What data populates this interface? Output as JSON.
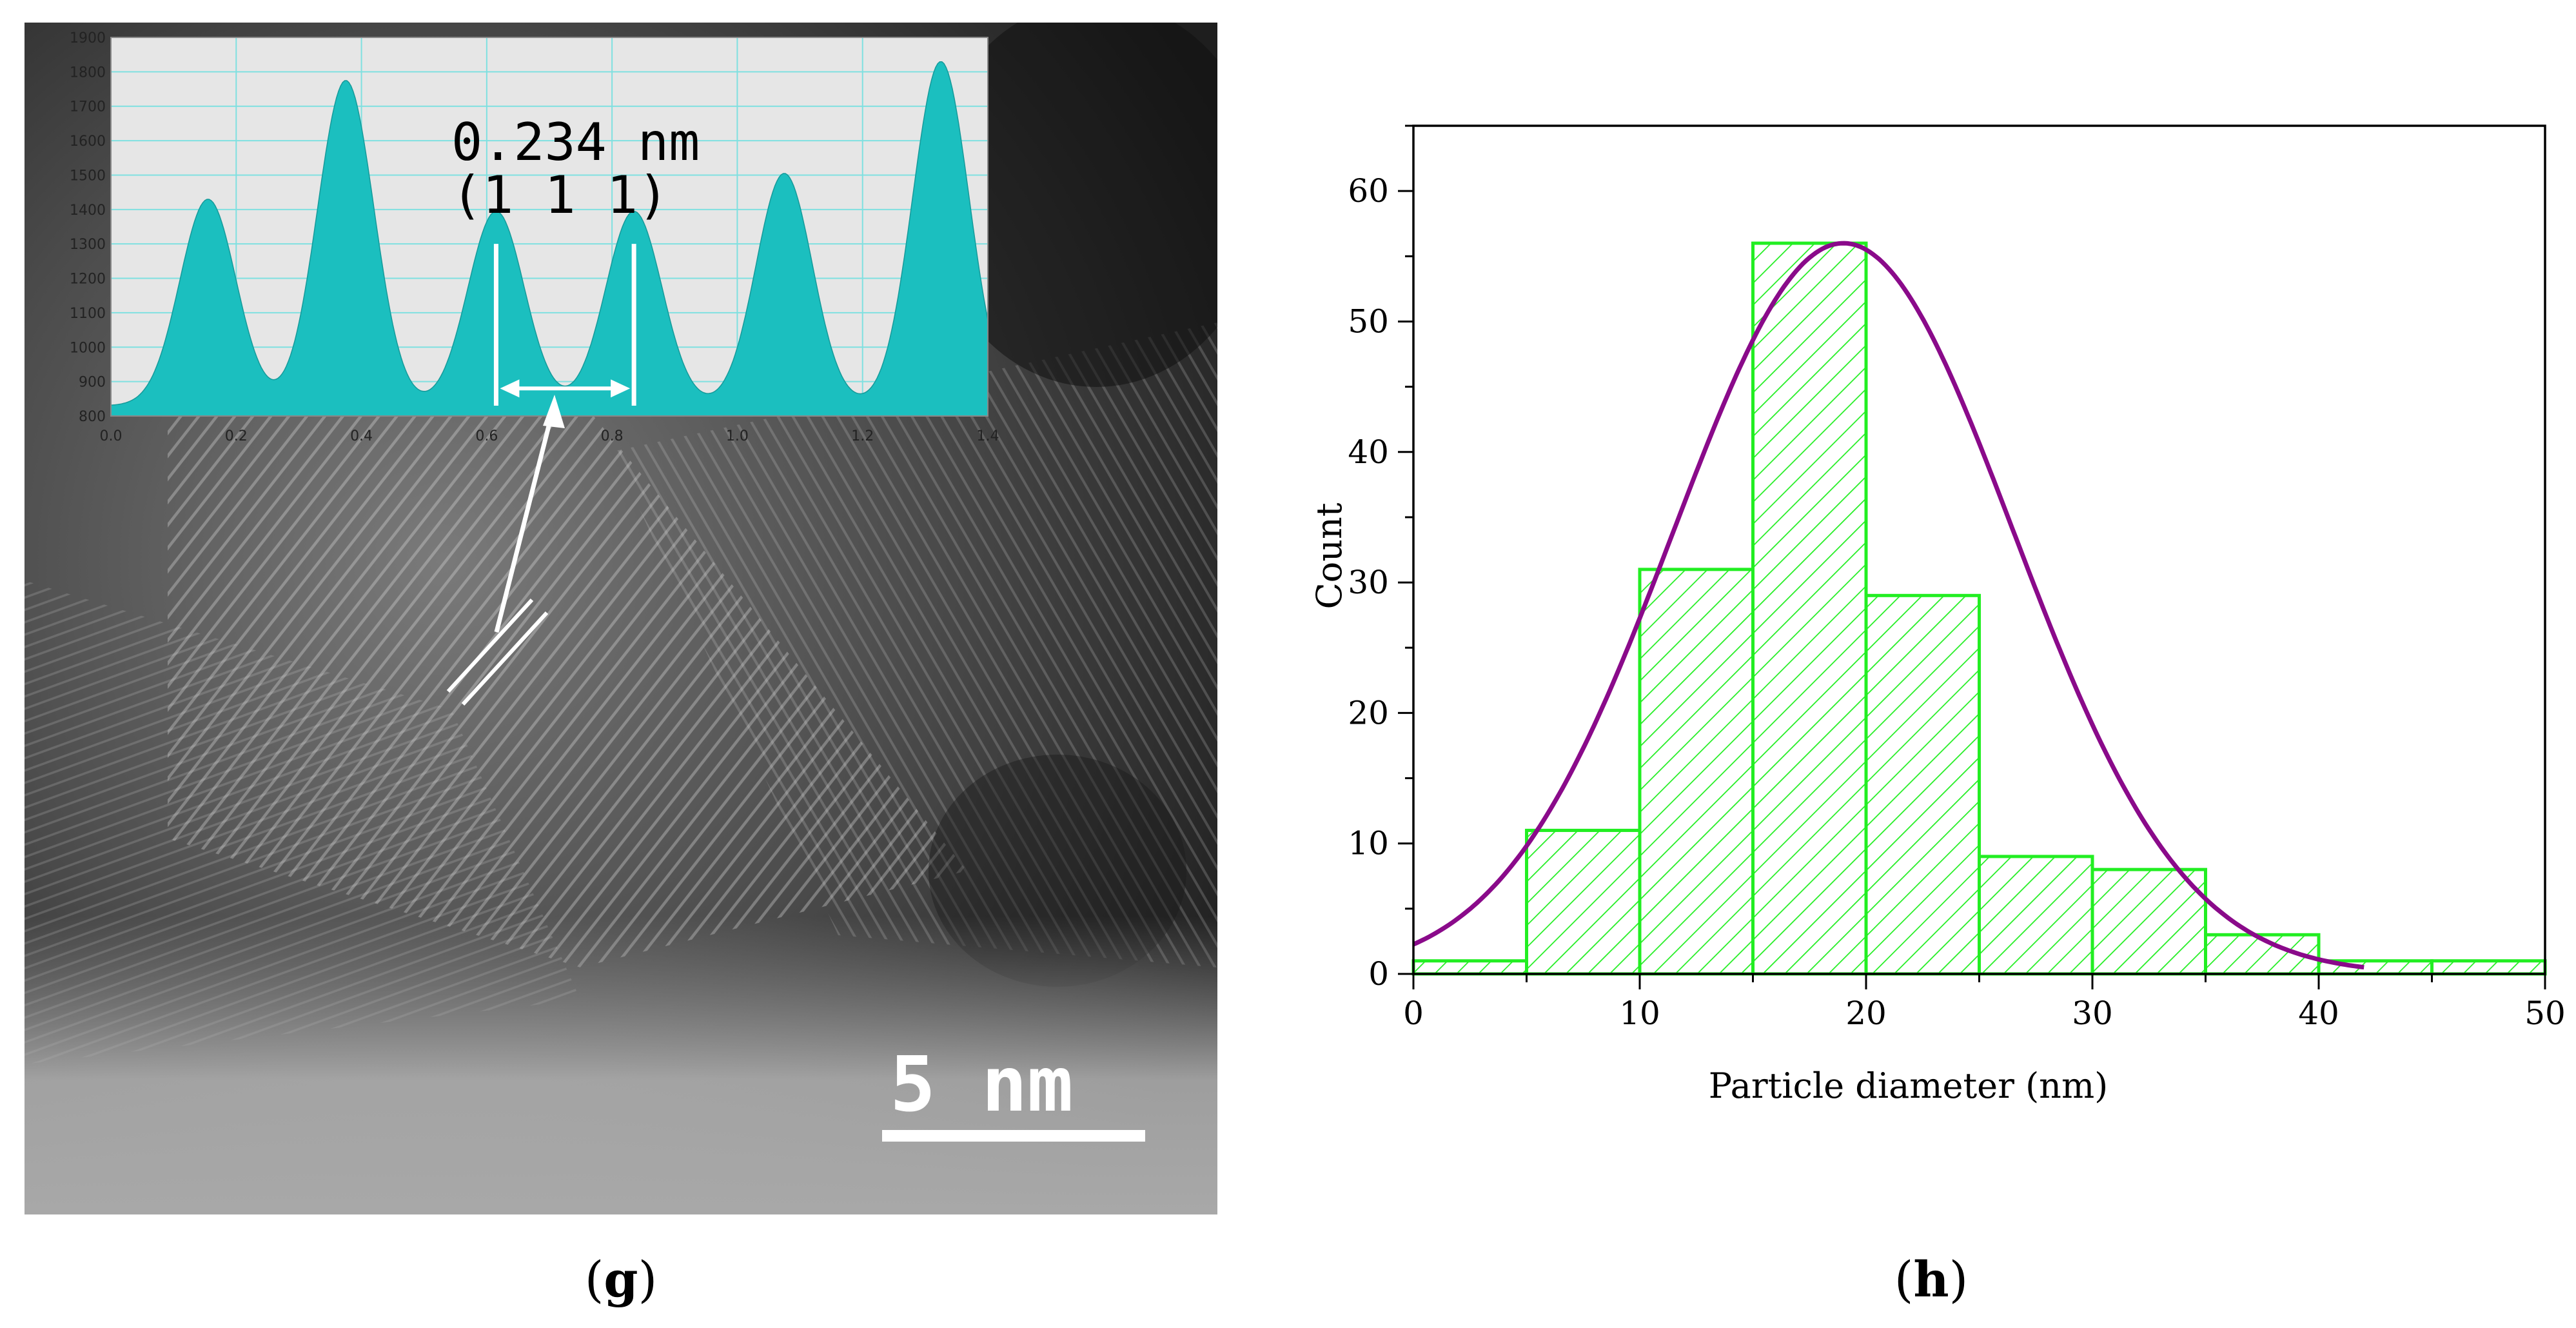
{
  "panels": {
    "g": {
      "label_open": "(",
      "label_letter": "g",
      "label_close": ")"
    },
    "h": {
      "label_open": "(",
      "label_letter": "h",
      "label_close": ")"
    }
  },
  "tem": {
    "scale_bar_label": "5 nm",
    "scale_bar_nm": 5,
    "arrow_color": "#ffffff"
  },
  "colors": {
    "profile_fill": "#1bbfbf",
    "profile_bg": "#e6e6e6",
    "profile_grid": "#7fe0e0",
    "bar_edge": "#22ee22",
    "fit_curve": "#8a0a8a"
  },
  "chart_data": [
    {
      "id": "intensity-profile",
      "type": "area",
      "title": "",
      "annotation_line1": "0.234 nm",
      "annotation_line2": "(1 1 1)",
      "xlabel": "",
      "ylabel": "",
      "xlim": [
        0.0,
        1.4
      ],
      "ylim": [
        800,
        1900
      ],
      "x_ticks": [
        0.0,
        0.2,
        0.4,
        0.6,
        0.8,
        1.0,
        1.2,
        1.4
      ],
      "x_tick_labels": [
        "0.0",
        "0.2",
        "0.4",
        "0.6",
        "0.8",
        "1.0",
        "1.2",
        "1.4"
      ],
      "y_ticks": [
        800,
        900,
        1000,
        1100,
        1200,
        1300,
        1400,
        1500,
        1600,
        1700,
        1800,
        1900
      ],
      "y_tick_labels": [
        "800",
        "900",
        "1000",
        "1100",
        "1200",
        "1300",
        "1400",
        "1500",
        "1600",
        "1700",
        "1800",
        "1900"
      ],
      "baseline": 830,
      "peaks": [
        {
          "x": 0.155,
          "y": 1430
        },
        {
          "x": 0.375,
          "y": 1775
        },
        {
          "x": 0.615,
          "y": 1395
        },
        {
          "x": 0.835,
          "y": 1395
        },
        {
          "x": 1.075,
          "y": 1505
        },
        {
          "x": 1.325,
          "y": 1830
        }
      ],
      "peak_sigma": 0.045,
      "measure_markers_x": [
        0.615,
        0.835
      ],
      "measure_arrow_y": 880
    },
    {
      "id": "size-histogram",
      "type": "bar",
      "title": "",
      "xlabel": "Particle diameter (nm)",
      "ylabel": "Count",
      "xlim": [
        0,
        50
      ],
      "ylim": [
        0,
        65
      ],
      "x_ticks": [
        0,
        10,
        20,
        30,
        40,
        50
      ],
      "y_ticks": [
        0,
        10,
        20,
        30,
        40,
        50,
        60
      ],
      "bin_width": 5,
      "bin_edges": [
        0,
        5,
        10,
        15,
        20,
        25,
        30,
        35,
        40,
        45,
        50
      ],
      "values": [
        1,
        11,
        31,
        56,
        29,
        9,
        8,
        3,
        1,
        1
      ],
      "fit": {
        "type": "gaussian",
        "amplitude": 56,
        "mean": 19,
        "sigma": 7.5,
        "x_range": [
          0,
          42
        ]
      }
    }
  ]
}
